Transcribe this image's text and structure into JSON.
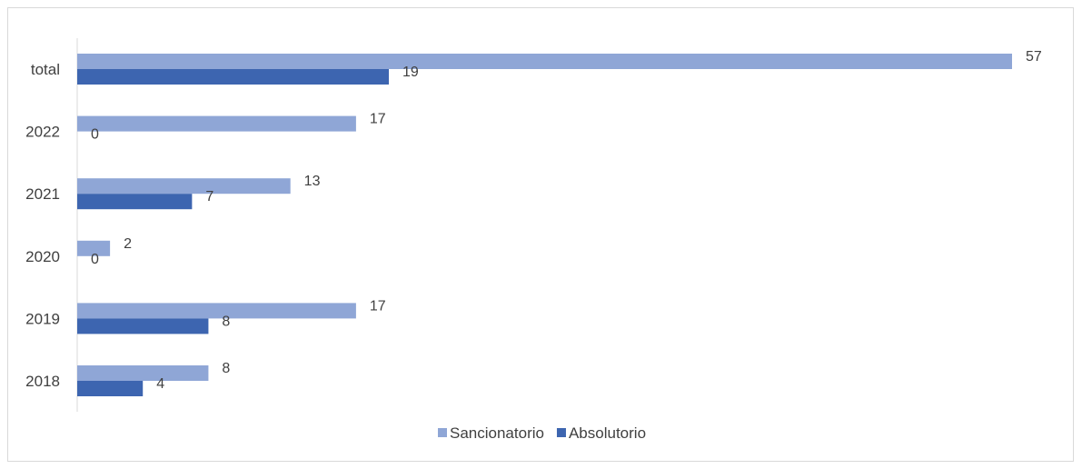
{
  "chart_data": {
    "type": "bar",
    "orientation": "horizontal",
    "categories": [
      "total",
      "2022",
      "2021",
      "2020",
      "2019",
      "2018"
    ],
    "series": [
      {
        "name": "Sancionatorio",
        "color": "#8fa6d6",
        "values": [
          57,
          17,
          13,
          2,
          17,
          8
        ]
      },
      {
        "name": "Absolutorio",
        "color": "#3d65b0",
        "values": [
          19,
          0,
          7,
          0,
          8,
          4
        ]
      }
    ],
    "xlim": [
      0,
      57
    ],
    "grid": false,
    "x_axis_visible": false,
    "legend_position": "bottom"
  }
}
